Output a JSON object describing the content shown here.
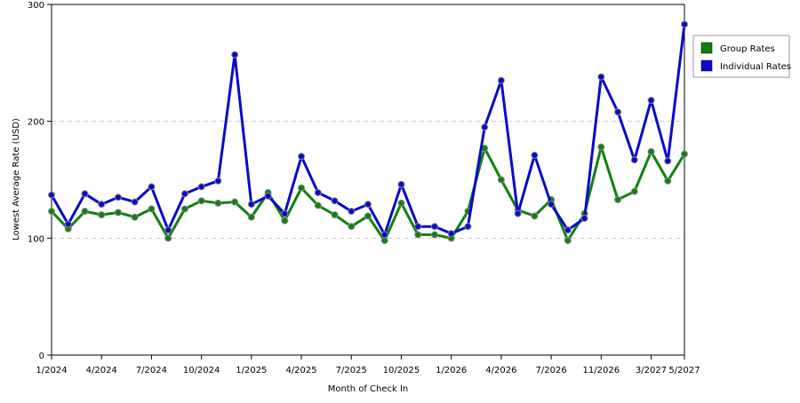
{
  "chart_data": {
    "type": "line",
    "title": "",
    "xlabel": "Month of Check In",
    "ylabel": "Lowest Average Rate (USD)",
    "ylim": [
      0,
      300
    ],
    "y_ticks": [
      "0",
      "100",
      "200",
      "300"
    ],
    "x_tick_labels": [
      {
        "index": 0,
        "label": "1/2024"
      },
      {
        "index": 3,
        "label": "4/2024"
      },
      {
        "index": 6,
        "label": "7/2024"
      },
      {
        "index": 9,
        "label": "10/2024"
      },
      {
        "index": 12,
        "label": "1/2025"
      },
      {
        "index": 15,
        "label": "4/2025"
      },
      {
        "index": 18,
        "label": "7/2025"
      },
      {
        "index": 21,
        "label": "10/2025"
      },
      {
        "index": 24,
        "label": "1/2026"
      },
      {
        "index": 27,
        "label": "4/2026"
      },
      {
        "index": 30,
        "label": "7/2026"
      },
      {
        "index": 33,
        "label": "11/2026"
      },
      {
        "index": 36,
        "label": "3/2027"
      },
      {
        "index": 38,
        "label": "5/2027"
      }
    ],
    "grid": "horizontal dashed",
    "legend_position": "right",
    "series": [
      {
        "name": "Group Rates",
        "color": "#108010",
        "values": [
          123,
          108,
          123,
          120,
          122,
          118,
          125,
          100,
          125,
          132,
          130,
          131,
          118,
          139,
          115,
          143,
          128,
          120,
          110,
          119,
          98,
          130,
          103,
          103,
          100,
          123,
          177,
          150,
          124,
          119,
          133,
          98,
          121,
          178,
          133,
          140,
          174,
          149,
          172
        ]
      },
      {
        "name": "Individual Rates",
        "color": "#0a0ac8",
        "values": [
          137,
          112,
          138,
          129,
          135,
          131,
          144,
          107,
          138,
          144,
          149,
          257,
          129,
          136,
          121,
          170,
          139,
          132,
          123,
          129,
          103,
          146,
          110,
          110,
          104,
          110,
          195,
          235,
          121,
          171,
          129,
          107,
          117,
          238,
          208,
          167,
          218,
          166,
          283
        ]
      }
    ]
  }
}
